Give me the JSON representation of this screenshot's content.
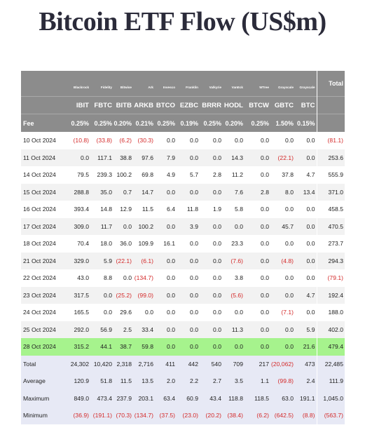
{
  "title": "Bitcoin ETF Flow (US$m)",
  "header": {
    "issuers": [
      "",
      "Blackrock",
      "Fidelity",
      "Bitwise",
      "Ark",
      "Invesco",
      "Franklin",
      "Valkyrie",
      "VanEck",
      "WTree",
      "Grayscale",
      "Grayscale"
    ],
    "total_label": "Total",
    "tickers": [
      "",
      "IBIT",
      "FBTC",
      "BITB",
      "ARKB",
      "BTCO",
      "EZBC",
      "BRRR",
      "HODL",
      "BTCW",
      "GBTC",
      "BTC",
      ""
    ],
    "fee_label": "Fee",
    "fees": [
      "0.25%",
      "0.25%",
      "0.20%",
      "0.21%",
      "0.25%",
      "0.19%",
      "0.25%",
      "0.20%",
      "0.25%",
      "1.50%",
      "0.15%",
      ""
    ]
  },
  "rows": [
    {
      "date": "10 Oct 2024",
      "values": [
        "(10.8)",
        "(33.8)",
        "(6.2)",
        "(30.3)",
        "0.0",
        "0.0",
        "0.0",
        "0.0",
        "0.0",
        "0.0",
        "0.0",
        "(81.1)"
      ]
    },
    {
      "date": "11 Oct 2024",
      "values": [
        "0.0",
        "117.1",
        "38.8",
        "97.6",
        "7.9",
        "0.0",
        "0.0",
        "14.3",
        "0.0",
        "(22.1)",
        "0.0",
        "253.6"
      ]
    },
    {
      "date": "14 Oct 2024",
      "values": [
        "79.5",
        "239.3",
        "100.2",
        "69.8",
        "4.9",
        "5.7",
        "2.8",
        "11.2",
        "0.0",
        "37.8",
        "4.7",
        "555.9"
      ]
    },
    {
      "date": "15 Oct 2024",
      "values": [
        "288.8",
        "35.0",
        "0.7",
        "14.7",
        "0.0",
        "0.0",
        "0.0",
        "7.6",
        "2.8",
        "8.0",
        "13.4",
        "371.0"
      ]
    },
    {
      "date": "16 Oct 2024",
      "values": [
        "393.4",
        "14.8",
        "12.9",
        "11.5",
        "6.4",
        "11.8",
        "1.9",
        "5.8",
        "0.0",
        "0.0",
        "0.0",
        "458.5"
      ]
    },
    {
      "date": "17 Oct 2024",
      "values": [
        "309.0",
        "11.7",
        "0.0",
        "100.2",
        "0.0",
        "3.9",
        "0.0",
        "0.0",
        "0.0",
        "45.7",
        "0.0",
        "470.5"
      ]
    },
    {
      "date": "18 Oct 2024",
      "values": [
        "70.4",
        "18.0",
        "36.0",
        "109.9",
        "16.1",
        "0.0",
        "0.0",
        "23.3",
        "0.0",
        "0.0",
        "0.0",
        "273.7"
      ]
    },
    {
      "date": "21 Oct 2024",
      "values": [
        "329.0",
        "5.9",
        "(22.1)",
        "(6.1)",
        "0.0",
        "0.0",
        "0.0",
        "(7.6)",
        "0.0",
        "(4.8)",
        "0.0",
        "294.3"
      ]
    },
    {
      "date": "22 Oct 2024",
      "values": [
        "43.0",
        "8.8",
        "0.0",
        "(134.7)",
        "0.0",
        "0.0",
        "0.0",
        "3.8",
        "0.0",
        "0.0",
        "0.0",
        "(79.1)"
      ]
    },
    {
      "date": "23 Oct 2024",
      "values": [
        "317.5",
        "0.0",
        "(25.2)",
        "(99.0)",
        "0.0",
        "0.0",
        "0.0",
        "(5.6)",
        "0.0",
        "0.0",
        "4.7",
        "192.4"
      ]
    },
    {
      "date": "24 Oct 2024",
      "values": [
        "165.5",
        "0.0",
        "29.6",
        "0.0",
        "0.0",
        "0.0",
        "0.0",
        "0.0",
        "0.0",
        "(7.1)",
        "0.0",
        "188.0"
      ]
    },
    {
      "date": "25 Oct 2024",
      "values": [
        "292.0",
        "56.9",
        "2.5",
        "33.4",
        "0.0",
        "0.0",
        "0.0",
        "11.3",
        "0.0",
        "0.0",
        "5.9",
        "402.0"
      ]
    },
    {
      "date": "28 Oct 2024",
      "values": [
        "315.2",
        "44.1",
        "38.7",
        "59.8",
        "0.0",
        "0.0",
        "0.0",
        "0.0",
        "0.0",
        "0.0",
        "21.6",
        "479.4"
      ],
      "highlight": true
    }
  ],
  "summary": [
    {
      "label": "Total",
      "values": [
        "24,302",
        "10,420",
        "2,318",
        "2,716",
        "411",
        "442",
        "540",
        "709",
        "217",
        "(20,062)",
        "473",
        "22,485"
      ]
    },
    {
      "label": "Average",
      "values": [
        "120.9",
        "51.8",
        "11.5",
        "13.5",
        "2.0",
        "2.2",
        "2.7",
        "3.5",
        "1.1",
        "(99.8)",
        "2.4",
        "111.9"
      ]
    },
    {
      "label": "Maximum",
      "values": [
        "849.0",
        "473.4",
        "237.9",
        "203.1",
        "63.4",
        "60.9",
        "43.4",
        "118.8",
        "118.5",
        "63.0",
        "191.1",
        "1,045.0"
      ]
    },
    {
      "label": "Minimum",
      "values": [
        "(36.9)",
        "(191.1)",
        "(70.3)",
        "(134.7)",
        "(37.5)",
        "(23.0)",
        "(20.2)",
        "(38.4)",
        "(6.2)",
        "(642.5)",
        "(8.8)",
        "(563.7)"
      ]
    }
  ],
  "colors": {
    "header_bg": "#8c8c8c",
    "negative": "#d42a2a",
    "highlight_row": "#a6f38d",
    "summary_bg": "#e7e9f5",
    "title": "#2b2b3a"
  }
}
